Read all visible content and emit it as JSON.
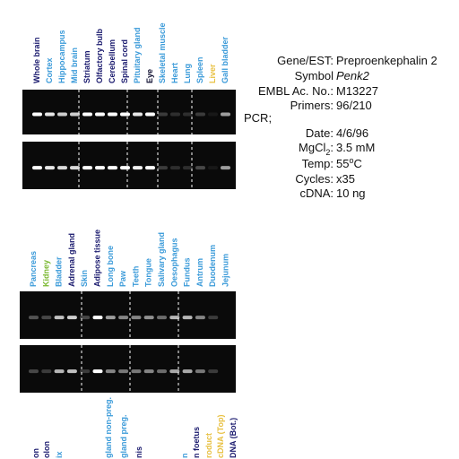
{
  "top_panel": {
    "lanes": [
      {
        "label": "Whole brain",
        "color": "#1a1a6e"
      },
      {
        "label": "Cortex",
        "color": "#3a9ad9"
      },
      {
        "label": "Hippocampus",
        "color": "#3a9ad9"
      },
      {
        "label": "Mid brain",
        "color": "#3a9ad9"
      },
      {
        "label": "Striatum",
        "color": "#1a1a6e"
      },
      {
        "label": "Olfactory bulb",
        "color": "#1a1a6e"
      },
      {
        "label": "Cerebellum",
        "color": "#1a1a6e"
      },
      {
        "label": "Spinal cord",
        "color": "#1a1a6e"
      },
      {
        "label": "Pituitary gland",
        "color": "#3a9ad9"
      },
      {
        "label": "Eye",
        "color": "#111133"
      },
      {
        "label": "Skeletal muscle",
        "color": "#3a9ad9"
      },
      {
        "label": "Heart",
        "color": "#3a9ad9"
      },
      {
        "label": "Lung",
        "color": "#3a9ad9"
      },
      {
        "label": "Spleen",
        "color": "#3a9ad9"
      },
      {
        "label": "Liver",
        "color": "#e8c040"
      },
      {
        "label": "Gall bladder",
        "color": "#3a9ad9"
      }
    ]
  },
  "bottom_panel": {
    "lanes": [
      {
        "label": "Pancreas",
        "color": "#3a9ad9"
      },
      {
        "label": "Kidney",
        "color": "#7ab830"
      },
      {
        "label": "Bladder",
        "color": "#3a9ad9"
      },
      {
        "label": "Adrenal gland",
        "color": "#1a1a6e"
      },
      {
        "label": "Skin",
        "color": "#3a9ad9"
      },
      {
        "label": "Adipose tissue",
        "color": "#1a1a6e"
      },
      {
        "label": "Long bone",
        "color": "#3a9ad9"
      },
      {
        "label": "Paw",
        "color": "#3a9ad9"
      },
      {
        "label": "Teeth",
        "color": "#3a9ad9"
      },
      {
        "label": "Tongue",
        "color": "#3a9ad9"
      },
      {
        "label": "Salivary gland",
        "color": "#3a9ad9"
      },
      {
        "label": "Oesophagus",
        "color": "#3a9ad9"
      },
      {
        "label": "Fundus",
        "color": "#3a9ad9"
      },
      {
        "label": "Antrum",
        "color": "#3a9ad9"
      },
      {
        "label": "Duodenum",
        "color": "#3a9ad9"
      },
      {
        "label": "Jejunum",
        "color": "#3a9ad9"
      }
    ]
  },
  "cut_panel": {
    "lanes": [
      {
        "label": "on",
        "color": "#1a1a6e"
      },
      {
        "label": "olon",
        "color": "#1a1a6e"
      },
      {
        "label": "ix",
        "color": "#3a9ad9"
      },
      {
        "label": "gland non-preg.",
        "color": "#3a9ad9"
      },
      {
        "label": "gland preg.",
        "color": "#3a9ad9"
      },
      {
        "label": "nis",
        "color": "#1a1a6e"
      },
      {
        "label": "n",
        "color": "#3a9ad9"
      },
      {
        "label": "n foetus",
        "color": "#1a1a6e"
      },
      {
        "label": "roduct",
        "color": "#e8c040"
      },
      {
        "label": "cDNA (Top)",
        "color": "#e8c040"
      },
      {
        "label": "DNA (Bot.)",
        "color": "#1a1a6e"
      }
    ]
  },
  "info": {
    "gene_label": "Gene/EST:",
    "gene": "Preproenkephalin 2",
    "symbol_label": "Symbol",
    "symbol": "Penk2",
    "embl_label": "EMBL Ac. No.:",
    "embl": "M13227",
    "primers_label": "Primers:",
    "primers": "96/210",
    "pcr": "PCR;",
    "date_label": "Date:",
    "date": "4/6/96",
    "mgcl_label": "MgCl",
    "mgcl_sub": "2",
    "mgcl_colon": ":",
    "mgcl": "3.5 mM",
    "temp_label": "Temp:",
    "temp": "55",
    "temp_sup": "o",
    "temp_unit": "C",
    "cycles_label": "Cycles:",
    "cycles": "x35",
    "cdna_label": "cDNA:",
    "cdna": "10 ng"
  }
}
